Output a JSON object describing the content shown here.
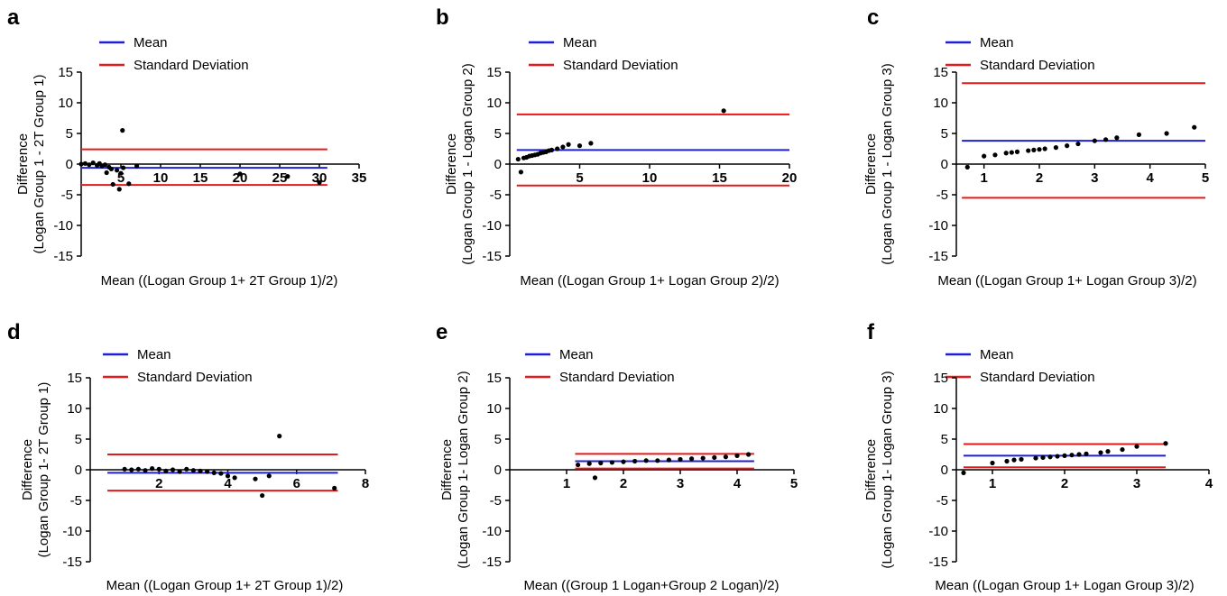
{
  "figure": {
    "legend": {
      "mean_label": "Mean",
      "sd_label": "Standard Deviation"
    },
    "colors": {
      "mean": "#1f1fd6",
      "sd": "#e31a1c",
      "points": "#000000",
      "axis": "#000000"
    }
  },
  "chart_data": [
    {
      "panel": "a",
      "type": "scatter",
      "ylabel_line1": "Difference",
      "ylabel_line2": "(Logan Group 1 - 2T Group 1)",
      "xlabel": "Mean ((Logan Group 1+ 2T Group 1)/2)",
      "xlim": [
        0,
        35
      ],
      "ylim": [
        -15,
        15
      ],
      "xticks": [
        5,
        10,
        15,
        20,
        25,
        30,
        35
      ],
      "yticks": [
        -15,
        -10,
        -5,
        0,
        5,
        10,
        15
      ],
      "x_range": [
        0,
        31
      ],
      "mean": -0.6,
      "sd_upper": 2.4,
      "sd_lower": -3.4,
      "points": [
        [
          0,
          0
        ],
        [
          0.5,
          0.1
        ],
        [
          1,
          -0.1
        ],
        [
          1.5,
          0.2
        ],
        [
          2,
          -0.2
        ],
        [
          2.3,
          0.1
        ],
        [
          2.6,
          -0.3
        ],
        [
          3,
          -0.1
        ],
        [
          3.2,
          -1.4
        ],
        [
          3.5,
          -0.5
        ],
        [
          3.8,
          -0.8
        ],
        [
          4,
          -3.3
        ],
        [
          4.5,
          -1
        ],
        [
          4.8,
          -4.1
        ],
        [
          5,
          -1.5
        ],
        [
          5.2,
          5.5
        ],
        [
          5.3,
          -0.6
        ],
        [
          6,
          -3.2
        ],
        [
          7,
          -0.3
        ],
        [
          20,
          -1.6
        ],
        [
          26,
          -2
        ],
        [
          30,
          -3
        ]
      ]
    },
    {
      "panel": "b",
      "type": "scatter",
      "ylabel_line1": "Difference",
      "ylabel_line2": "(Logan Group 1 - Logan Group 2)",
      "xlabel": "Mean ((Logan Group 1+ Logan Group 2)/2)",
      "xlim": [
        0,
        20
      ],
      "ylim": [
        -15,
        15
      ],
      "xticks": [
        5,
        10,
        15,
        20
      ],
      "yticks": [
        -15,
        -10,
        -5,
        0,
        5,
        10,
        15
      ],
      "x_range": [
        0.5,
        20
      ],
      "mean": 2.3,
      "sd_upper": 8.1,
      "sd_lower": -3.5,
      "points": [
        [
          0.6,
          0.8
        ],
        [
          0.8,
          -1.3
        ],
        [
          1,
          1
        ],
        [
          1.2,
          1.1
        ],
        [
          1.4,
          1.3
        ],
        [
          1.6,
          1.4
        ],
        [
          1.8,
          1.5
        ],
        [
          2,
          1.6
        ],
        [
          2.2,
          1.8
        ],
        [
          2.4,
          1.9
        ],
        [
          2.6,
          2
        ],
        [
          2.8,
          2.2
        ],
        [
          3,
          2.3
        ],
        [
          3.4,
          2.5
        ],
        [
          3.8,
          2.8
        ],
        [
          4.2,
          3.2
        ],
        [
          5,
          3
        ],
        [
          5.8,
          3.4
        ],
        [
          15.3,
          8.7
        ]
      ]
    },
    {
      "panel": "c",
      "type": "scatter",
      "ylabel_line1": "Difference",
      "ylabel_line2": "(Logan Group 1 - Logan Group 3)",
      "xlabel": "Mean ((Logan Group 1+ Logan Group 3)/2)",
      "xlim": [
        0.5,
        5
      ],
      "ylim": [
        -15,
        15
      ],
      "xticks": [
        1,
        2,
        3,
        4,
        5
      ],
      "yticks": [
        -15,
        -10,
        -5,
        0,
        5,
        10,
        15
      ],
      "x_range": [
        0.6,
        5
      ],
      "mean": 3.8,
      "sd_upper": 13.2,
      "sd_lower": -5.5,
      "points": [
        [
          0.7,
          -0.5
        ],
        [
          1,
          1.3
        ],
        [
          1.2,
          1.5
        ],
        [
          1.4,
          1.8
        ],
        [
          1.5,
          1.9
        ],
        [
          1.6,
          2
        ],
        [
          1.8,
          2.2
        ],
        [
          1.9,
          2.3
        ],
        [
          2,
          2.4
        ],
        [
          2.1,
          2.5
        ],
        [
          2.3,
          2.7
        ],
        [
          2.5,
          3
        ],
        [
          2.7,
          3.3
        ],
        [
          3,
          3.8
        ],
        [
          3.2,
          4
        ],
        [
          3.4,
          4.3
        ],
        [
          3.8,
          4.8
        ],
        [
          4.3,
          5
        ],
        [
          4.8,
          6
        ]
      ]
    },
    {
      "panel": "d",
      "type": "scatter",
      "ylabel_line1": "Difference",
      "ylabel_line2": "(Logan Group 1- 2T Group 1)",
      "xlabel": "Mean ((Logan Group 1+ 2T Group 1)/2)",
      "xlim": [
        0,
        8
      ],
      "ylim": [
        -15,
        15
      ],
      "xticks": [
        2,
        4,
        6,
        8
      ],
      "yticks": [
        -15,
        -10,
        -5,
        0,
        5,
        10,
        15
      ],
      "x_range": [
        0.5,
        7.2
      ],
      "mean": -0.5,
      "sd_upper": 2.5,
      "sd_lower": -3.4,
      "points": [
        [
          1,
          0.1
        ],
        [
          1.2,
          0
        ],
        [
          1.4,
          0.1
        ],
        [
          1.6,
          -0.1
        ],
        [
          1.8,
          0.2
        ],
        [
          2,
          0.1
        ],
        [
          2.2,
          -0.2
        ],
        [
          2.4,
          0
        ],
        [
          2.6,
          -0.3
        ],
        [
          2.8,
          0.1
        ],
        [
          3,
          -0.1
        ],
        [
          3.2,
          -0.2
        ],
        [
          3.4,
          -0.3
        ],
        [
          3.6,
          -0.5
        ],
        [
          3.8,
          -0.6
        ],
        [
          4,
          -1
        ],
        [
          4.2,
          -1.3
        ],
        [
          4.8,
          -1.5
        ],
        [
          5,
          -4.2
        ],
        [
          5.2,
          -1
        ],
        [
          5.5,
          5.5
        ],
        [
          7.1,
          -3
        ]
      ]
    },
    {
      "panel": "e",
      "type": "scatter",
      "ylabel_line1": "Difference",
      "ylabel_line2": "(Logan Group 1- Logan Group 2)",
      "xlabel": "Mean ((Group 1 Logan+Group 2 Logan)/2)",
      "xlim": [
        0,
        5
      ],
      "ylim": [
        -15,
        15
      ],
      "xticks": [
        1,
        2,
        3,
        4,
        5
      ],
      "yticks": [
        -15,
        -10,
        -5,
        0,
        5,
        10,
        15
      ],
      "x_range": [
        1.15,
        4.3
      ],
      "mean": 1.4,
      "sd_upper": 2.6,
      "sd_lower": 0.2,
      "points": [
        [
          1.2,
          0.8
        ],
        [
          1.4,
          1
        ],
        [
          1.5,
          -1.3
        ],
        [
          1.6,
          1.1
        ],
        [
          1.8,
          1.2
        ],
        [
          2,
          1.3
        ],
        [
          2.2,
          1.4
        ],
        [
          2.4,
          1.5
        ],
        [
          2.6,
          1.5
        ],
        [
          2.8,
          1.6
        ],
        [
          3,
          1.7
        ],
        [
          3.2,
          1.8
        ],
        [
          3.4,
          1.9
        ],
        [
          3.6,
          2
        ],
        [
          3.8,
          2.1
        ],
        [
          4,
          2.3
        ],
        [
          4.2,
          2.5
        ]
      ]
    },
    {
      "panel": "f",
      "type": "scatter",
      "ylabel_line1": "Difference",
      "ylabel_line2": "(Logan Group 1- Logan Group 3)",
      "xlabel": "Mean ((Logan Group 1+ Logan Group 3)/2)",
      "xlim": [
        0.5,
        4
      ],
      "ylim": [
        -15,
        15
      ],
      "xticks": [
        1,
        2,
        3,
        4
      ],
      "yticks": [
        -15,
        -10,
        -5,
        0,
        5,
        10,
        15
      ],
      "x_range": [
        0.6,
        3.4
      ],
      "mean": 2.3,
      "sd_upper": 4.2,
      "sd_lower": 0.4,
      "points": [
        [
          0.6,
          -0.5
        ],
        [
          1,
          1.1
        ],
        [
          1.2,
          1.4
        ],
        [
          1.3,
          1.6
        ],
        [
          1.4,
          1.7
        ],
        [
          1.6,
          1.9
        ],
        [
          1.7,
          2
        ],
        [
          1.8,
          2.1
        ],
        [
          1.9,
          2.2
        ],
        [
          2,
          2.3
        ],
        [
          2.1,
          2.4
        ],
        [
          2.2,
          2.5
        ],
        [
          2.3,
          2.6
        ],
        [
          2.5,
          2.8
        ],
        [
          2.6,
          3
        ],
        [
          2.8,
          3.3
        ],
        [
          3,
          3.8
        ],
        [
          3.4,
          4.3
        ]
      ]
    }
  ]
}
